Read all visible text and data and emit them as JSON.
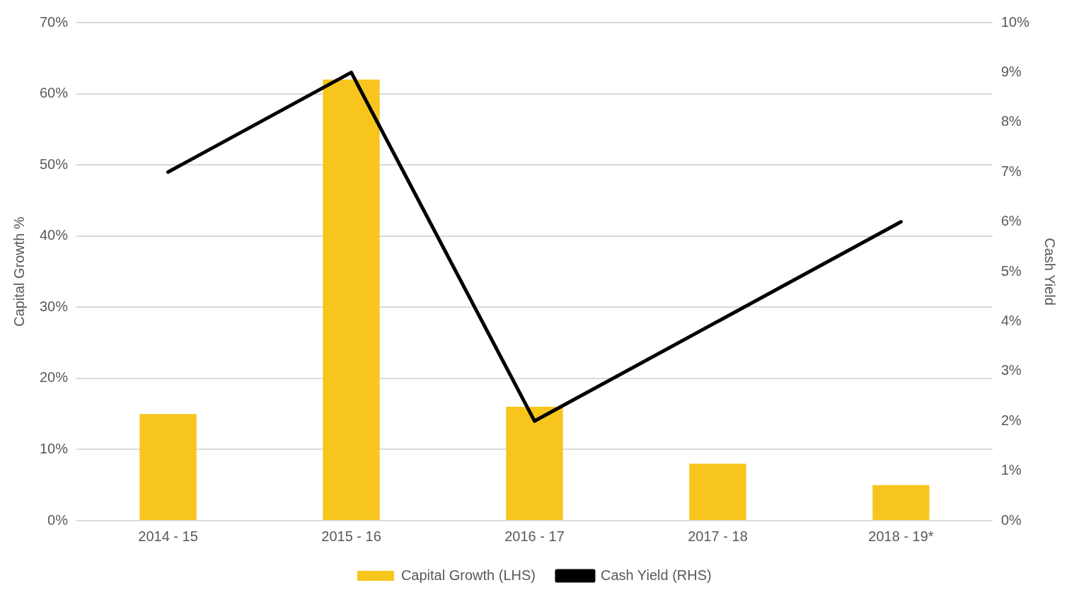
{
  "chart_data": {
    "type": "bar",
    "categories": [
      "2014 - 15",
      "2015 - 16",
      "2016 - 17",
      "2017 - 18",
      "2018 - 19*"
    ],
    "series": [
      {
        "name": "Capital Growth (LHS)",
        "color": "#f7c51c",
        "values": [
          15,
          62,
          16,
          8,
          5
        ]
      },
      {
        "name": "Cash Yield (RHS)",
        "type": "line",
        "axis": "y2",
        "color": "#000000",
        "values": [
          7,
          9,
          2,
          4,
          6
        ]
      }
    ],
    "ylabel": "Capital Growth %",
    "y2label": "Cash Yield",
    "ylim": [
      0,
      70
    ],
    "yticks": [
      {
        "value": 0,
        "label": "0%"
      },
      {
        "value": 10,
        "label": "10%"
      },
      {
        "value": 20,
        "label": "20%"
      },
      {
        "value": 30,
        "label": "30%"
      },
      {
        "value": 40,
        "label": "40%"
      },
      {
        "value": 50,
        "label": "50%"
      },
      {
        "value": 60,
        "label": "60%"
      },
      {
        "value": 70,
        "label": "70%"
      }
    ],
    "y2lim": [
      0,
      10
    ],
    "y2ticks": [
      {
        "value": 0,
        "label": "0%"
      },
      {
        "value": 1,
        "label": "1%"
      },
      {
        "value": 2,
        "label": "2%"
      },
      {
        "value": 3,
        "label": "3%"
      },
      {
        "value": 4,
        "label": "4%"
      },
      {
        "value": 5,
        "label": "5%"
      },
      {
        "value": 6,
        "label": "6%"
      },
      {
        "value": 7,
        "label": "7%"
      },
      {
        "value": 8,
        "label": "8%"
      },
      {
        "value": 9,
        "label": "9%"
      },
      {
        "value": 10,
        "label": "10%"
      }
    ],
    "grid": "y",
    "legend": "bottom",
    "marker": "none",
    "line_style": "solid"
  }
}
